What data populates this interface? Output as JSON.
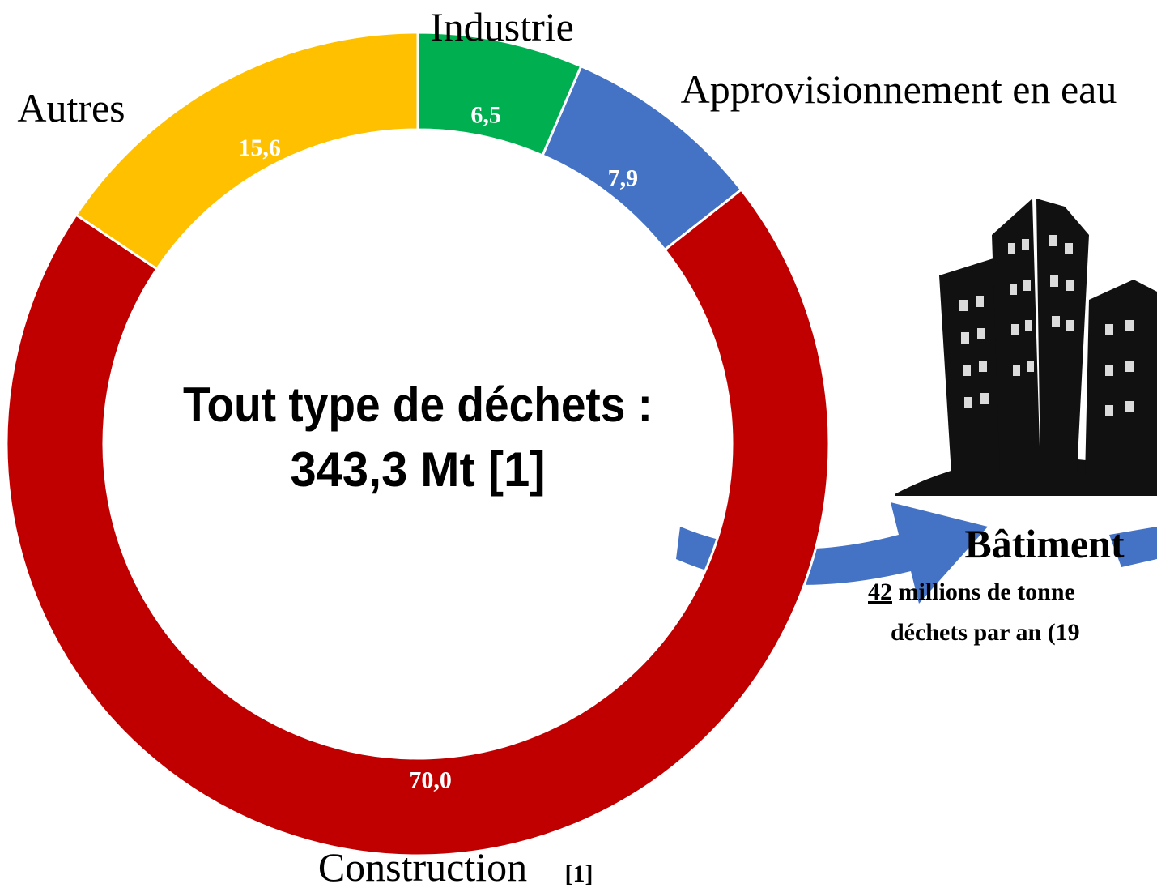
{
  "chart_data": {
    "type": "donut",
    "categories": [
      "Industrie",
      "Approvisionnement en eau",
      "Construction",
      "Autres"
    ],
    "values": [
      6.5,
      7.9,
      70.0,
      15.6
    ],
    "value_labels": [
      "6,5",
      "7,9",
      "70,0",
      "15,6"
    ],
    "colors": [
      "#00b050",
      "#4472c4",
      "#c00000",
      "#ffc000"
    ],
    "center_text": [
      "Tout type de déchets :",
      "343,3 Mt [1]"
    ],
    "category_note": "[1]"
  },
  "side_panel": {
    "title": "Bâtiment",
    "line1_number": "42",
    "line1_text": " millions de tonne",
    "line2": "déchets par an (19"
  }
}
